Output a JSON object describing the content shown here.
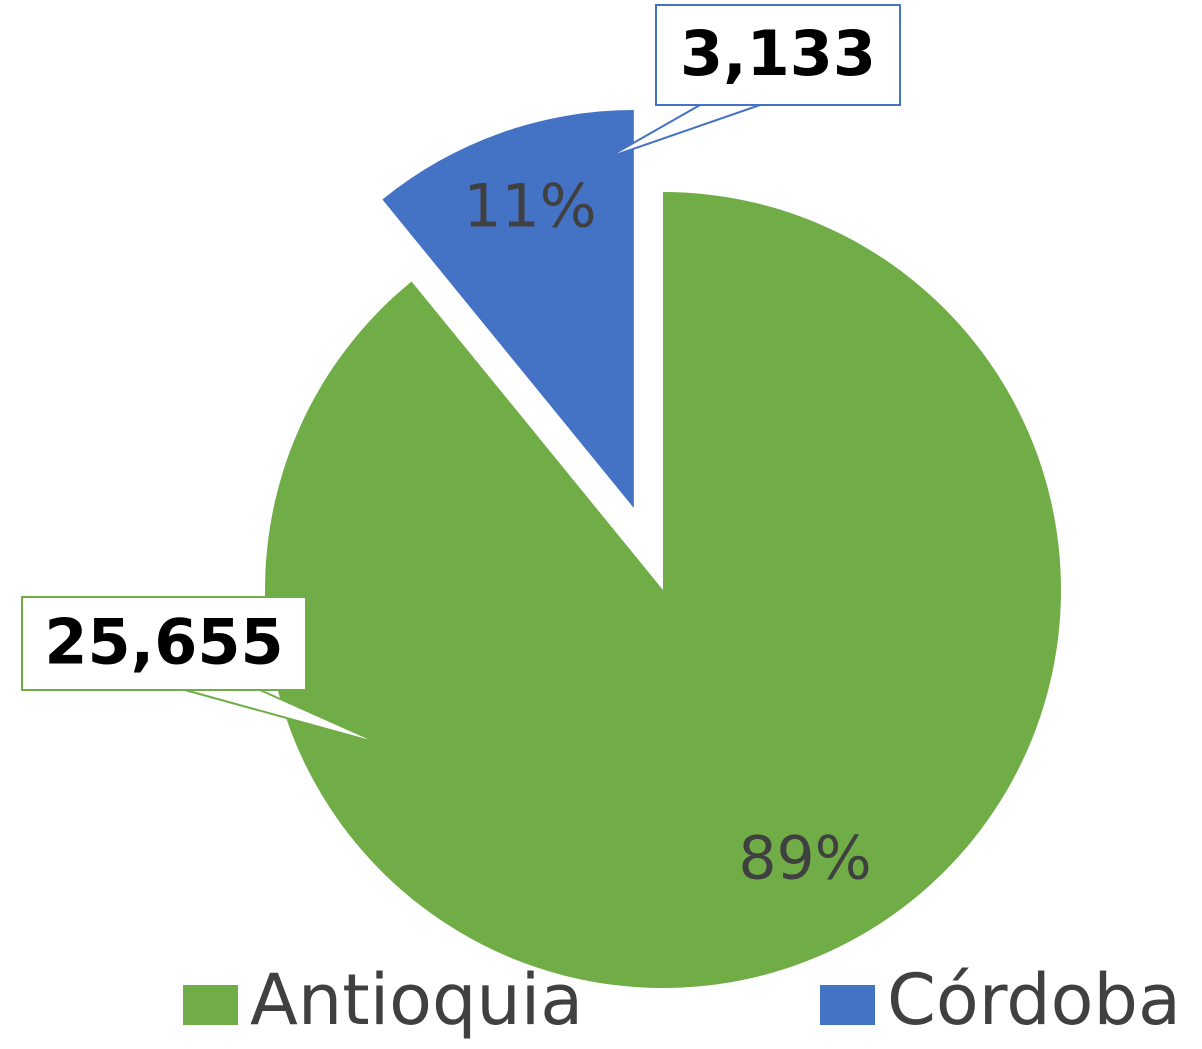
{
  "chart_data": {
    "type": "pie",
    "categories": [
      "Antioquia",
      "Córdoba"
    ],
    "values": [
      25655,
      3133
    ],
    "value_labels": [
      "25,655",
      "3,133"
    ],
    "percent_labels": [
      "89%",
      "11%"
    ],
    "colors": [
      "#70ad47",
      "#4472c4"
    ],
    "legend": "bottom"
  }
}
